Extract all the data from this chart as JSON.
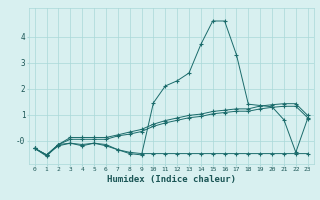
{
  "xlabel": "Humidex (Indice chaleur)",
  "x": [
    0,
    1,
    2,
    3,
    4,
    5,
    6,
    7,
    8,
    9,
    10,
    11,
    12,
    13,
    14,
    15,
    16,
    17,
    18,
    19,
    20,
    21,
    22,
    23
  ],
  "line1": [
    -0.3,
    -0.6,
    -0.15,
    -0.1,
    -0.15,
    -0.1,
    -0.15,
    -0.35,
    -0.45,
    -0.5,
    -0.5,
    -0.5,
    -0.5,
    -0.5,
    -0.5,
    -0.5,
    -0.5,
    -0.5,
    -0.5,
    -0.5,
    -0.5,
    -0.5,
    -0.5,
    -0.5
  ],
  "line2": [
    -0.3,
    -0.55,
    -0.2,
    -0.1,
    -0.2,
    -0.1,
    -0.2,
    -0.35,
    -0.5,
    -0.55,
    1.45,
    2.1,
    2.3,
    2.6,
    3.7,
    4.6,
    4.6,
    3.3,
    1.4,
    1.35,
    1.3,
    0.8,
    -0.45,
    0.85
  ],
  "line3": [
    -0.3,
    -0.55,
    -0.15,
    0.05,
    0.05,
    0.05,
    0.05,
    0.18,
    0.25,
    0.35,
    0.55,
    0.68,
    0.78,
    0.88,
    0.93,
    1.03,
    1.08,
    1.13,
    1.13,
    1.22,
    1.28,
    1.32,
    1.32,
    0.88
  ],
  "line4": [
    -0.3,
    -0.55,
    -0.15,
    0.12,
    0.12,
    0.12,
    0.12,
    0.22,
    0.33,
    0.43,
    0.63,
    0.77,
    0.87,
    0.97,
    1.02,
    1.12,
    1.17,
    1.22,
    1.22,
    1.33,
    1.38,
    1.42,
    1.42,
    0.97
  ],
  "color": "#1a6b6b",
  "bg_color": "#d8f0f0",
  "grid_color": "#aad8d8",
  "ylim": [
    -0.9,
    5.1
  ],
  "xlim": [
    -0.5,
    23.5
  ],
  "yticks": [
    0,
    1,
    2,
    3,
    4
  ],
  "ytick_labels": [
    "-0",
    "1",
    "2",
    "3",
    "4"
  ]
}
